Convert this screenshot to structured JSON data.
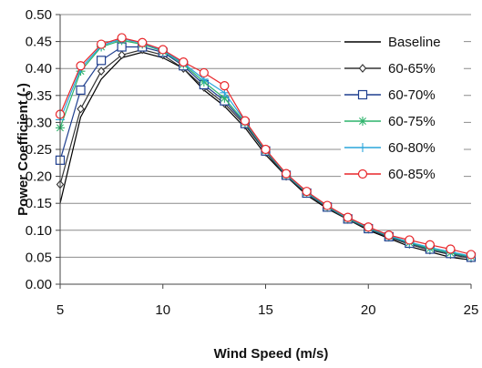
{
  "chart_data": {
    "type": "line",
    "title": "",
    "xlabel": "Wind Speed (m/s)",
    "ylabel": "Power Coefficient (-)",
    "xlim": [
      5,
      25
    ],
    "ylim": [
      0,
      0.5
    ],
    "x_ticks": [
      5,
      10,
      15,
      20,
      25
    ],
    "y_ticks": [
      "0.00",
      "0.05",
      "0.10",
      "0.15",
      "0.20",
      "0.25",
      "0.30",
      "0.35",
      "0.40",
      "0.45",
      "0.50"
    ],
    "grid": "horizontal",
    "legend_position": "right",
    "x": [
      5,
      6,
      7,
      8,
      9,
      10,
      11,
      12,
      13,
      14,
      15,
      16,
      17,
      18,
      19,
      20,
      21,
      22,
      23,
      24,
      25
    ],
    "series": [
      {
        "name": "Baseline",
        "color": "#000000",
        "marker": "none",
        "values": [
          0.15,
          0.31,
          0.38,
          0.42,
          0.43,
          0.42,
          0.4,
          0.36,
          0.33,
          0.29,
          0.24,
          0.2,
          0.165,
          0.14,
          0.12,
          0.1,
          0.085,
          0.07,
          0.06,
          0.05,
          0.045
        ]
      },
      {
        "name": "60-65%",
        "color": "#333333",
        "marker": "diamond",
        "values": [
          0.185,
          0.325,
          0.395,
          0.425,
          0.435,
          0.425,
          0.4,
          0.365,
          0.335,
          0.295,
          0.245,
          0.2,
          0.168,
          0.142,
          0.12,
          0.102,
          0.087,
          0.074,
          0.063,
          0.055,
          0.048
        ]
      },
      {
        "name": "60-70%",
        "color": "#1f3f8f",
        "marker": "square",
        "values": [
          0.23,
          0.36,
          0.415,
          0.44,
          0.44,
          0.43,
          0.405,
          0.37,
          0.34,
          0.298,
          0.247,
          0.202,
          0.169,
          0.143,
          0.121,
          0.103,
          0.088,
          0.076,
          0.065,
          0.057,
          0.05
        ]
      },
      {
        "name": "60-75%",
        "color": "#2db36b",
        "marker": "star",
        "values": [
          0.29,
          0.395,
          0.44,
          0.452,
          0.445,
          0.432,
          0.408,
          0.375,
          0.345,
          0.3,
          0.248,
          0.203,
          0.17,
          0.144,
          0.122,
          0.104,
          0.089,
          0.077,
          0.066,
          0.058,
          0.051
        ]
      },
      {
        "name": "60-80%",
        "color": "#2aa5dc",
        "marker": "plus",
        "values": [
          0.305,
          0.4,
          0.442,
          0.455,
          0.447,
          0.433,
          0.41,
          0.38,
          0.355,
          0.302,
          0.249,
          0.204,
          0.171,
          0.145,
          0.123,
          0.105,
          0.09,
          0.078,
          0.068,
          0.06,
          0.052
        ]
      },
      {
        "name": "60-85%",
        "color": "#e8262a",
        "marker": "circle",
        "values": [
          0.315,
          0.405,
          0.445,
          0.457,
          0.448,
          0.435,
          0.412,
          0.392,
          0.368,
          0.303,
          0.25,
          0.205,
          0.172,
          0.146,
          0.124,
          0.106,
          0.091,
          0.082,
          0.073,
          0.065,
          0.055
        ]
      }
    ]
  }
}
